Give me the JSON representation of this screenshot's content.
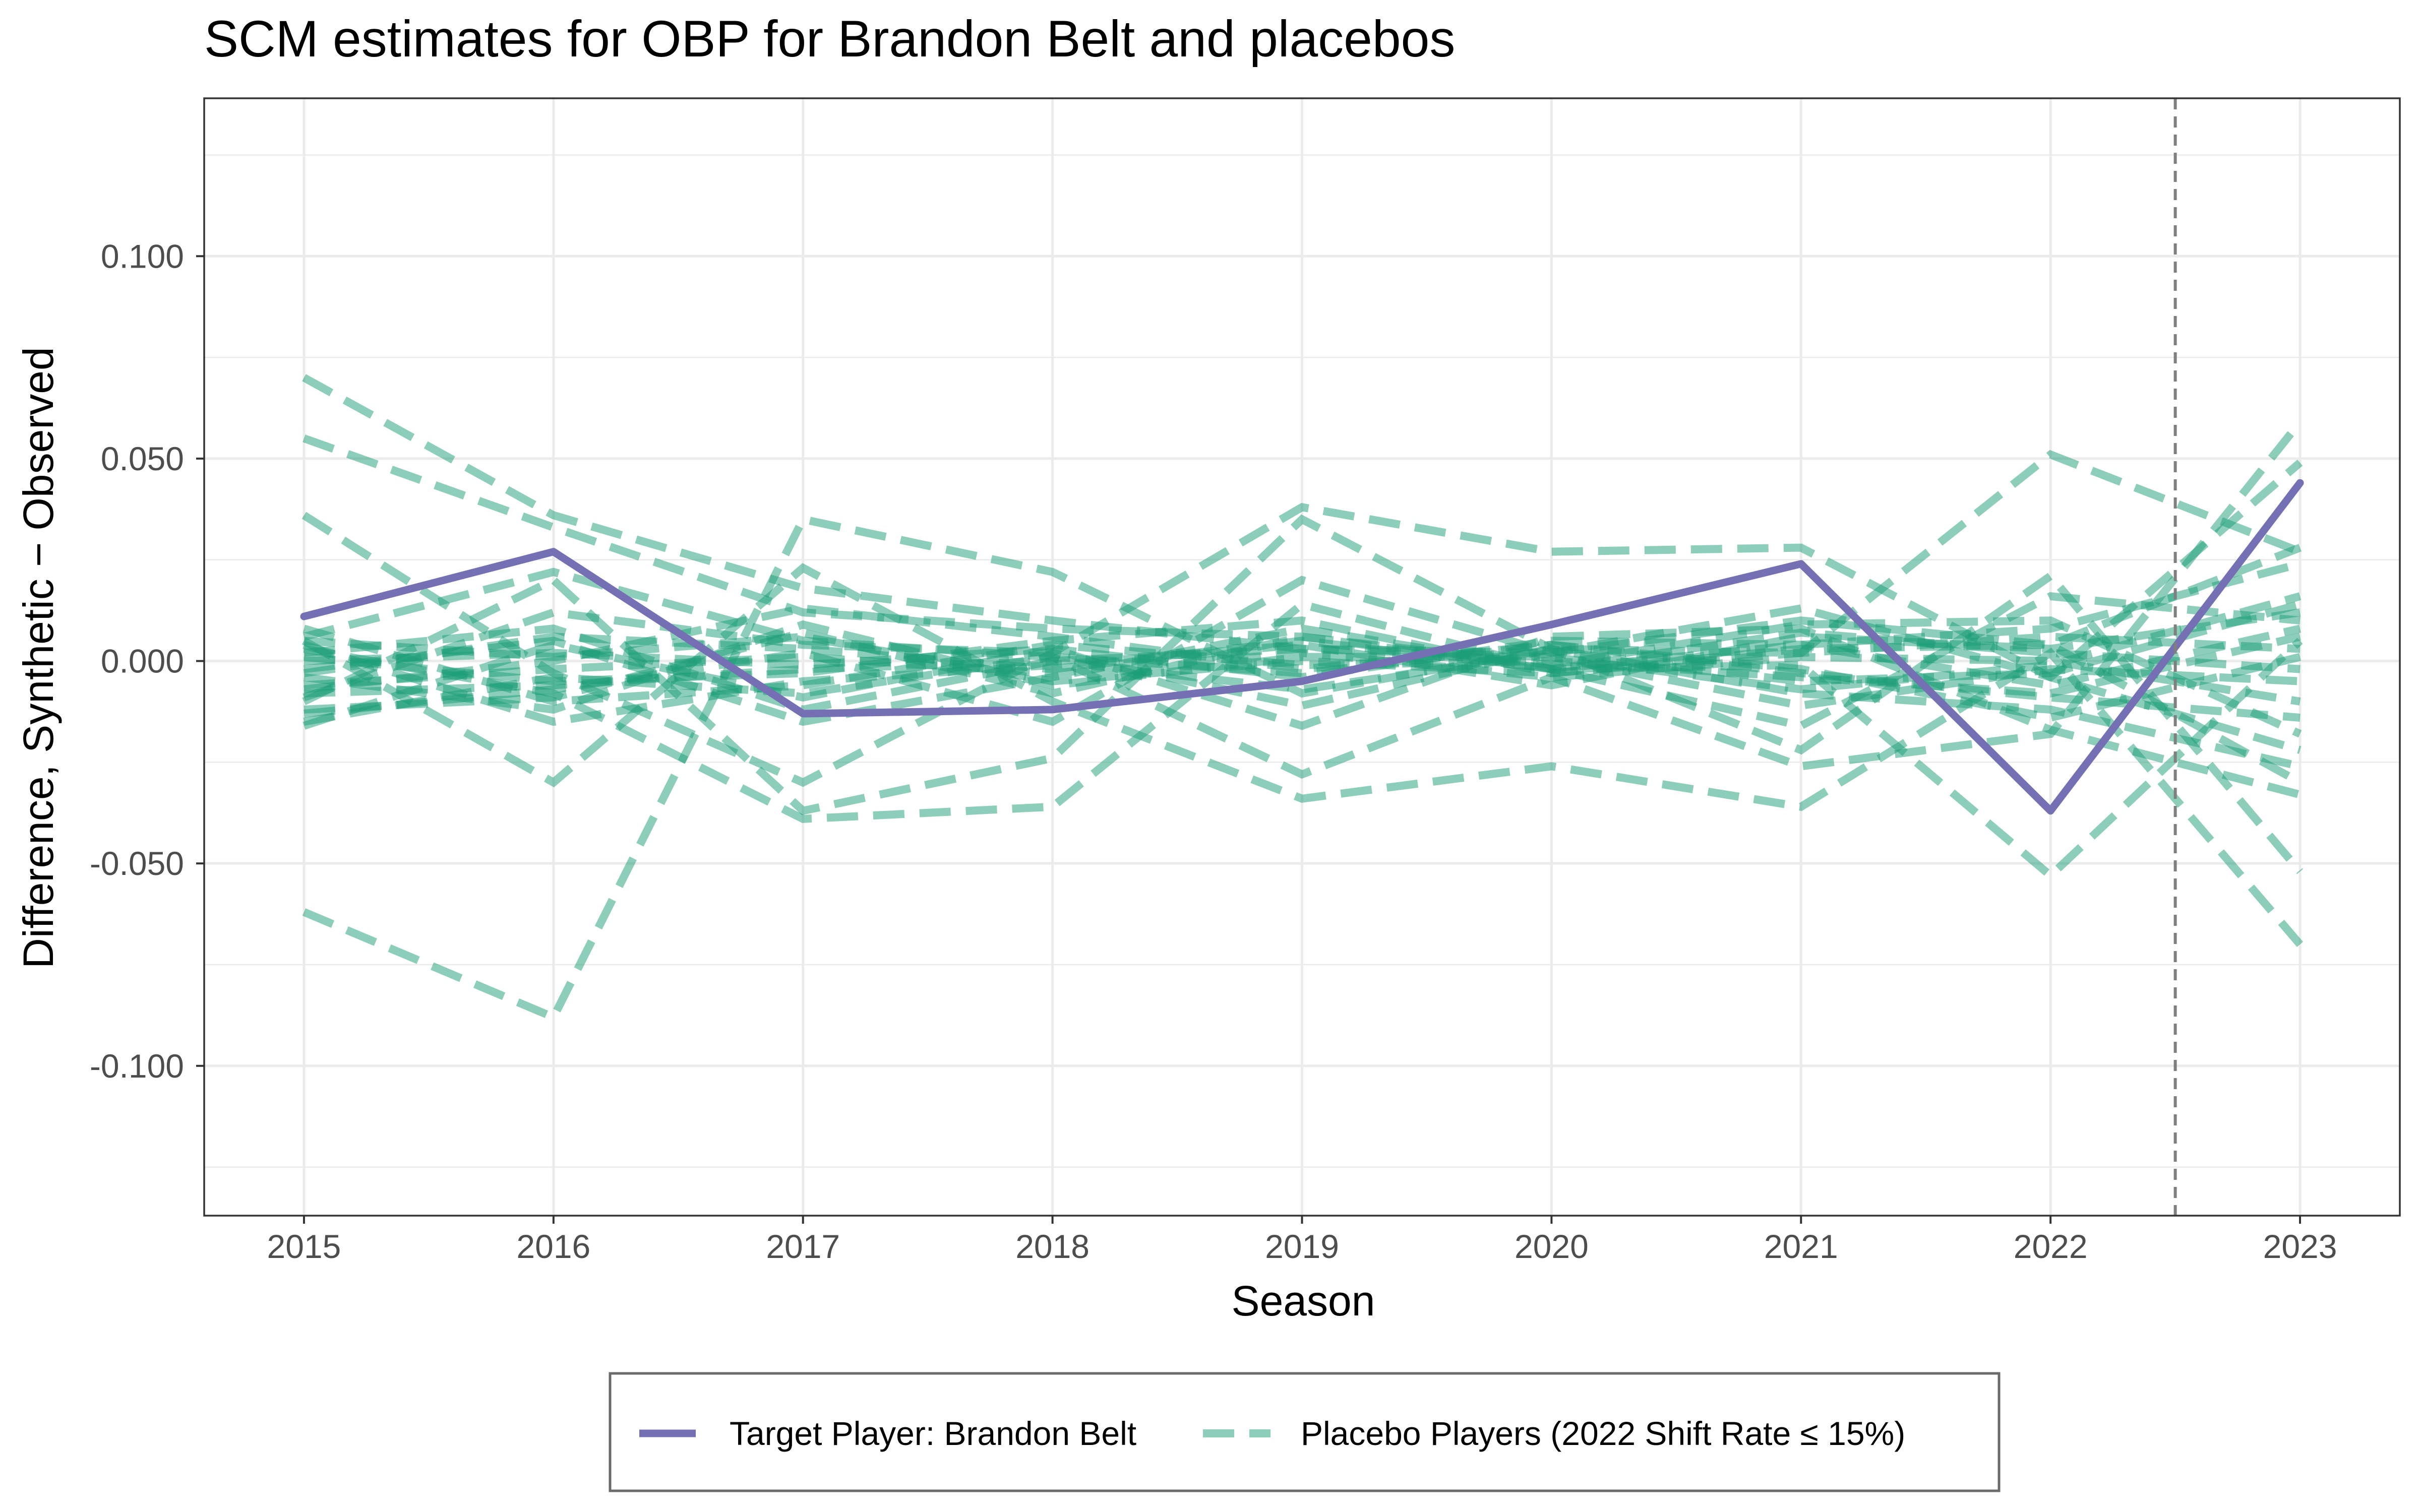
{
  "chart_data": {
    "type": "line",
    "title": "SCM estimates for OBP for Brandon Belt and placebos",
    "xlabel": "Season",
    "ylabel": "Difference, Synthetic − Observed",
    "x": [
      2015,
      2016,
      2017,
      2018,
      2019,
      2020,
      2021,
      2022,
      2023
    ],
    "x_ticks": [
      "2015",
      "2016",
      "2017",
      "2018",
      "2019",
      "2020",
      "2021",
      "2022",
      "2023"
    ],
    "y_ticks": [
      "-0.100",
      "-0.050",
      "0.000",
      "0.050",
      "0.100"
    ],
    "ylim": [
      -0.137,
      0.139
    ],
    "xlim": [
      2014.6,
      2023.4
    ],
    "grid": true,
    "vline": {
      "x": 2022.5,
      "style": "dashed"
    },
    "legend_position": "bottom",
    "series": [
      {
        "name": "Target Player: Brandon Belt",
        "role": "target",
        "color": "#7570b3",
        "values": [
          0.011,
          0.027,
          -0.013,
          -0.012,
          -0.005,
          0.009,
          0.024,
          -0.037,
          0.044
        ]
      },
      {
        "name": "Placebo Players (2022 Shift Rate ≤ 15%)",
        "role": "placebo",
        "color": "#1b9e77",
        "values": [
          0.07,
          0.036,
          0.018,
          0.01,
          0.003,
          0.002,
          0.01,
          0.004,
          0.028
        ]
      },
      {
        "role": "placebo",
        "values": [
          0.055,
          0.033,
          0.012,
          0.008,
          0.006,
          -0.002,
          0.004,
          0.008,
          0.024
        ]
      },
      {
        "role": "placebo",
        "values": [
          0.036,
          -0.003,
          -0.03,
          0.002,
          0.038,
          0.027,
          0.028,
          -0.004,
          -0.022
        ]
      },
      {
        "role": "placebo",
        "values": [
          -0.062,
          -0.088,
          0.035,
          0.022,
          -0.008,
          0.003,
          0.002,
          0.051,
          0.027
        ]
      },
      {
        "role": "placebo",
        "values": [
          0.005,
          -0.03,
          0.023,
          -0.01,
          -0.034,
          -0.026,
          -0.036,
          0.002,
          -0.07
        ]
      },
      {
        "role": "placebo",
        "values": [
          0.003,
          -0.008,
          -0.039,
          -0.036,
          0.014,
          -0.002,
          -0.001,
          -0.053,
          0.005
        ]
      },
      {
        "role": "placebo",
        "values": [
          -0.01,
          0.02,
          -0.037,
          -0.024,
          0.035,
          0.003,
          -0.022,
          0.021,
          -0.052
        ]
      },
      {
        "role": "placebo",
        "values": [
          0.006,
          0.022,
          0.005,
          0.001,
          -0.028,
          -0.004,
          -0.026,
          -0.018,
          0.059
        ]
      },
      {
        "role": "placebo",
        "values": [
          -0.013,
          -0.007,
          0.002,
          -0.015,
          0.02,
          0.002,
          0.013,
          -0.004,
          0.049
        ]
      },
      {
        "role": "placebo",
        "values": [
          -0.016,
          0.004,
          -0.009,
          0.003,
          -0.016,
          0.006,
          0.008,
          -0.017,
          -0.033
        ]
      },
      {
        "role": "placebo",
        "values": [
          -0.002,
          0.005,
          -0.015,
          -0.004,
          0.008,
          -0.002,
          -0.016,
          0.016,
          0.01
        ]
      },
      {
        "role": "placebo",
        "values": [
          -0.007,
          0.0,
          0.013,
          0.006,
          -0.002,
          0.004,
          -0.003,
          -0.009,
          -0.014
        ]
      },
      {
        "role": "placebo",
        "values": [
          0.004,
          -0.015,
          -0.005,
          -0.001,
          0.004,
          -0.006,
          0.006,
          0.003,
          0.012
        ]
      },
      {
        "role": "placebo",
        "values": [
          -0.009,
          0.012,
          0.004,
          0.002,
          -0.011,
          0.003,
          -0.008,
          -0.012,
          -0.026
        ]
      },
      {
        "role": "placebo",
        "values": [
          0.001,
          -0.005,
          -0.003,
          0.005,
          0.01,
          -0.003,
          0.002,
          0.006,
          0.003
        ]
      },
      {
        "role": "placebo",
        "values": [
          -0.004,
          -0.012,
          0.009,
          -0.006,
          0.001,
          0.001,
          -0.011,
          -0.002,
          -0.005
        ]
      },
      {
        "role": "placebo",
        "values": [
          0.0,
          0.002,
          -0.001,
          0.003,
          -0.004,
          0.005,
          0.004,
          -0.006,
          0.008
        ]
      },
      {
        "role": "placebo",
        "values": [
          -0.012,
          -0.009,
          0.007,
          -0.008,
          0.006,
          -0.001,
          0.009,
          0.01,
          -0.018
        ]
      },
      {
        "role": "placebo",
        "values": [
          0.002,
          0.008,
          -0.012,
          0.0,
          -0.007,
          0.002,
          -0.005,
          -0.003,
          0.014
        ]
      },
      {
        "role": "placebo",
        "values": [
          -0.006,
          -0.002,
          0.001,
          -0.003,
          0.002,
          -0.004,
          0.001,
          0.0,
          -0.01
        ]
      },
      {
        "role": "placebo",
        "values": [
          0.008,
          -0.01,
          -0.006,
          0.004,
          -0.001,
          0.0,
          -0.004,
          -0.008,
          0.006
        ]
      },
      {
        "role": "placebo",
        "values": [
          -0.003,
          0.006,
          0.003,
          -0.002,
          0.005,
          -0.002,
          0.007,
          0.002,
          -0.002
        ]
      },
      {
        "role": "placebo",
        "values": [
          -0.015,
          -0.004,
          -0.008,
          0.001,
          -0.003,
          0.004,
          -0.002,
          -0.014,
          0.001
        ]
      },
      {
        "role": "placebo",
        "values": [
          0.005,
          0.001,
          0.006,
          -0.005,
          0.0,
          -0.003,
          0.003,
          0.004,
          -0.03
        ]
      },
      {
        "role": "placebo",
        "values": [
          -0.008,
          -0.006,
          -0.002,
          0.0,
          0.003,
          0.001,
          -0.007,
          -0.001,
          0.016
        ]
      }
    ]
  },
  "legend": {
    "target_label": "Target Player: Brandon Belt",
    "placebo_label": "Placebo Players (2022 Shift Rate ≤ 15%)"
  },
  "colors": {
    "target": "#7570b3",
    "placebo": "#1b9e77",
    "grid": "#ebebeb",
    "panel_border": "#333333",
    "vline": "#7f7f7f"
  }
}
